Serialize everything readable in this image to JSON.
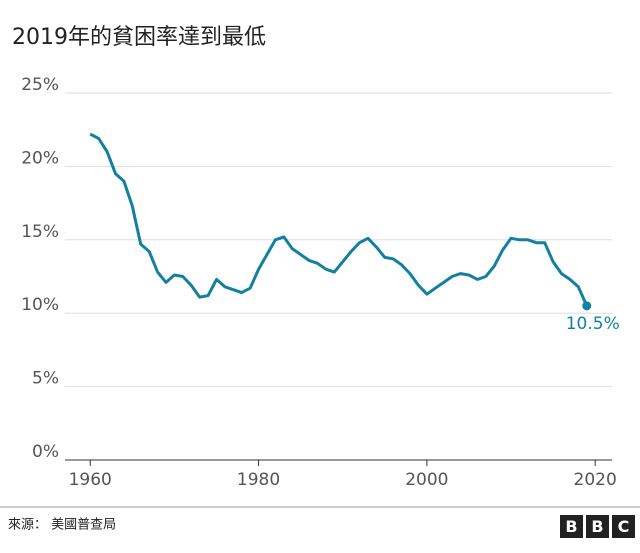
{
  "chart_data": {
    "type": "line",
    "title": "2019年的貧困率達到最低",
    "x": [
      1960,
      1961,
      1962,
      1963,
      1964,
      1965,
      1966,
      1967,
      1968,
      1969,
      1970,
      1971,
      1972,
      1973,
      1974,
      1975,
      1976,
      1977,
      1978,
      1979,
      1980,
      1981,
      1982,
      1983,
      1984,
      1985,
      1986,
      1987,
      1988,
      1989,
      1990,
      1991,
      1992,
      1993,
      1994,
      1995,
      1996,
      1997,
      1998,
      1999,
      2000,
      2001,
      2002,
      2003,
      2004,
      2005,
      2006,
      2007,
      2008,
      2009,
      2010,
      2011,
      2012,
      2013,
      2014,
      2015,
      2016,
      2017,
      2018,
      2019
    ],
    "series": [
      {
        "color": "#1380a1",
        "values": [
          22.2,
          21.9,
          21.0,
          19.5,
          19.0,
          17.3,
          14.7,
          14.2,
          12.8,
          12.1,
          12.6,
          12.5,
          11.9,
          11.1,
          11.2,
          12.3,
          11.8,
          11.6,
          11.4,
          11.7,
          13.0,
          14.0,
          15.0,
          15.2,
          14.4,
          14.0,
          13.6,
          13.4,
          13.0,
          12.8,
          13.5,
          14.2,
          14.8,
          15.1,
          14.5,
          13.8,
          13.7,
          13.3,
          12.7,
          11.9,
          11.3,
          11.7,
          12.1,
          12.5,
          12.7,
          12.6,
          12.3,
          12.5,
          13.2,
          14.3,
          15.1,
          15.0,
          15.0,
          14.8,
          14.8,
          13.5,
          12.7,
          12.3,
          11.8,
          10.5
        ],
        "value_labels": [
          null,
          null,
          null,
          null,
          null,
          null,
          null,
          null,
          null,
          null,
          null,
          null,
          null,
          null,
          null,
          null,
          null,
          null,
          null,
          null,
          null,
          null,
          null,
          null,
          null,
          null,
          null,
          null,
          null,
          null,
          null,
          null,
          null,
          null,
          null,
          null,
          null,
          null,
          null,
          null,
          null,
          null,
          null,
          null,
          null,
          null,
          null,
          null,
          null,
          null,
          null,
          null,
          null,
          null,
          null,
          null,
          null,
          null,
          null,
          "10.5%"
        ]
      }
    ],
    "xlim": [
      1957,
      2022
    ],
    "xticks": [
      1960,
      1980,
      2000,
      2020
    ],
    "ylim": [
      0,
      25
    ],
    "yticks": [
      {
        "value": 0,
        "label": "0%"
      },
      {
        "value": 5,
        "label": "5%"
      },
      {
        "value": 10,
        "label": "10%"
      },
      {
        "value": 15,
        "label": "15%"
      },
      {
        "value": 20,
        "label": "20%"
      },
      {
        "value": 25,
        "label": "25%"
      }
    ],
    "grid": true,
    "source": "來源： 美國普查局",
    "logo": [
      "B",
      "B",
      "C"
    ]
  }
}
